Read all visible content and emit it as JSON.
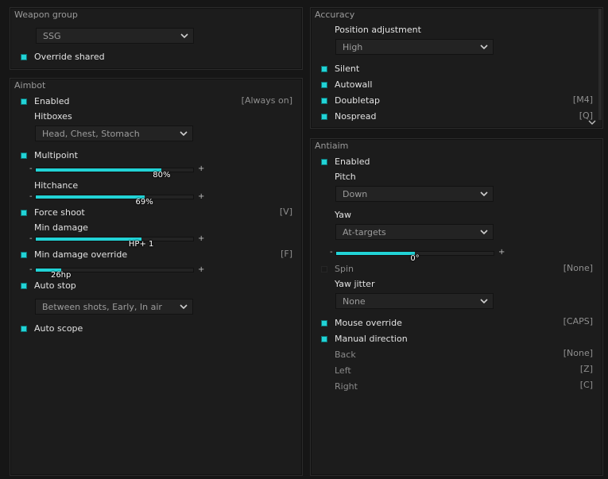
{
  "colors": {
    "accent": "#22d3d6",
    "panel": "#1c1c1c",
    "background": "#161616"
  },
  "weapon_group": {
    "title": "Weapon group",
    "dropdown": "SSG",
    "override_shared": "Override shared"
  },
  "aimbot": {
    "title": "Aimbot",
    "enabled": "Enabled",
    "enabled_key": "[Always on]",
    "hitboxes_label": "Hitboxes",
    "hitboxes_value": "Head, Chest, Stomach",
    "multipoint": "Multipoint",
    "multipoint_value": "80%",
    "multipoint_fraction": 0.8,
    "hitchance": "Hitchance",
    "hitchance_value": "69%",
    "hitchance_fraction": 0.69,
    "force_shoot": "Force shoot",
    "force_shoot_key": "[V]",
    "min_damage": "Min damage",
    "min_damage_value": "HP+ 1",
    "min_damage_fraction": 0.67,
    "min_damage_override": "Min damage override",
    "min_damage_override_key": "[F]",
    "min_damage_override_value": "26hp",
    "min_damage_override_fraction": 0.16,
    "auto_stop": "Auto stop",
    "auto_stop_value": "Between shots, Early, In air",
    "auto_scope": "Auto scope",
    "minus": "-",
    "plus": "+"
  },
  "accuracy": {
    "title": "Accuracy",
    "position_label": "Position adjustment",
    "position_value": "High",
    "silent": "Silent",
    "autowall": "Autowall",
    "doubletap": "Doubletap",
    "doubletap_key": "[M4]",
    "nospread": "Nospread",
    "nospread_key": "[Q]"
  },
  "antiaim": {
    "title": "Antiaim",
    "enabled": "Enabled",
    "pitch_label": "Pitch",
    "pitch_value": "Down",
    "yaw_label": "Yaw",
    "yaw_value": "At-targets",
    "yaw_slider_value": "0°",
    "yaw_slider_fraction": 0.5,
    "spin": "Spin",
    "spin_key": "[None]",
    "yaw_jitter_label": "Yaw jitter",
    "yaw_jitter_value": "None",
    "mouse_override": "Mouse override",
    "mouse_override_key": "[CAPS]",
    "manual_direction": "Manual direction",
    "back": "Back",
    "back_key": "[None]",
    "left": "Left",
    "left_key": "[Z]",
    "right": "Right",
    "right_key": "[C]",
    "minus": "-",
    "plus": "+"
  }
}
